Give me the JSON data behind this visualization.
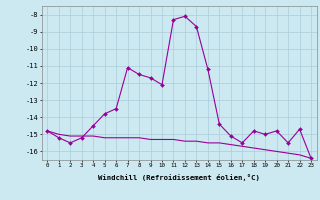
{
  "hours": [
    0,
    1,
    2,
    3,
    4,
    5,
    6,
    7,
    8,
    9,
    10,
    11,
    12,
    13,
    14,
    15,
    16,
    17,
    18,
    19,
    20,
    21,
    22,
    23
  ],
  "windchill": [
    -14.8,
    -15.2,
    -15.5,
    -15.2,
    -14.5,
    -13.8,
    -13.5,
    -11.1,
    -11.5,
    -11.7,
    -12.1,
    -8.3,
    -8.1,
    -8.7,
    -11.2,
    -14.4,
    -15.1,
    -15.5,
    -14.8,
    -15.0,
    -14.8,
    -15.5,
    -14.7,
    -16.4
  ],
  "temp_line": [
    -14.8,
    -15.0,
    -15.1,
    -15.1,
    -15.1,
    -15.2,
    -15.2,
    -15.2,
    -15.2,
    -15.3,
    -15.3,
    -15.3,
    -15.4,
    -15.4,
    -15.5,
    -15.5,
    -15.6,
    -15.7,
    -15.8,
    -15.9,
    -16.0,
    -16.1,
    -16.2,
    -16.4
  ],
  "line_color": "#990099",
  "bg_color": "#cce8f0",
  "grid_color": "#aaccd8",
  "xlabel": "Windchill (Refroidissement éolien,°C)",
  "ylim": [
    -16.5,
    -7.5
  ],
  "yticks": [
    -8,
    -9,
    -10,
    -11,
    -12,
    -13,
    -14,
    -15,
    -16
  ]
}
